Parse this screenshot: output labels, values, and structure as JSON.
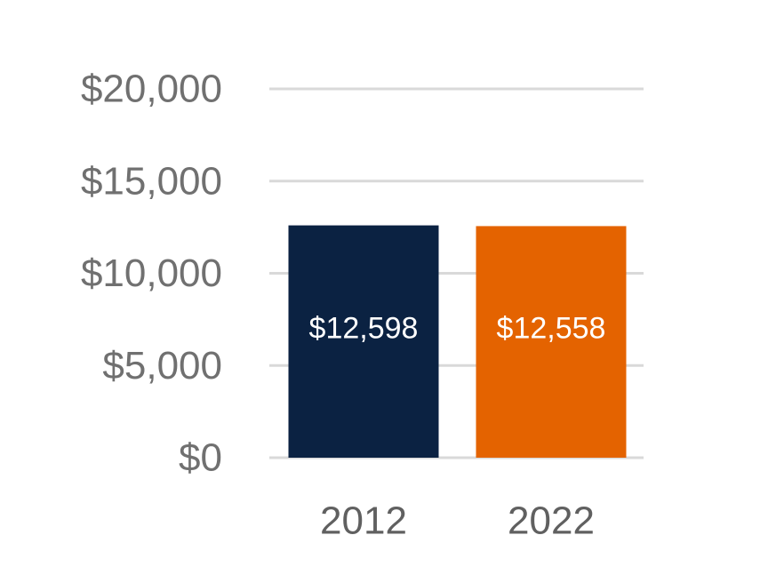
{
  "chart_data": {
    "type": "bar",
    "title": "",
    "xlabel": "",
    "ylabel": "",
    "categories": [
      "2012",
      "2022"
    ],
    "values": [
      12598,
      12558
    ],
    "data_labels": [
      "$12,598",
      "$12,558"
    ],
    "bar_colors": [
      "#0b2242",
      "#e46300"
    ],
    "ylim": [
      0,
      20000
    ],
    "y_ticks": [
      0,
      5000,
      10000,
      15000,
      20000
    ],
    "y_tick_labels": [
      "$0",
      "$5,000",
      "$10,000",
      "$15,000",
      "$20,000"
    ],
    "grid": true,
    "legend": "none"
  }
}
